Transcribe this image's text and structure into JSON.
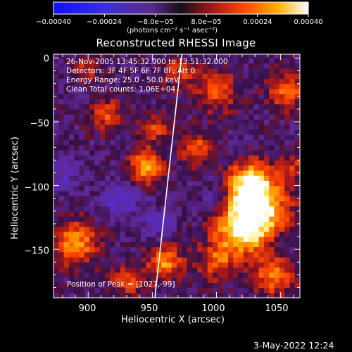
{
  "chart_data": {
    "type": "heatmap",
    "title": "Reconstructed RHESSI Image",
    "xlabel": "Heliocentric X (arcsec)",
    "ylabel": "Heliocentric Y (arcsec)",
    "x_ticks": [
      "900",
      "950",
      "1000",
      "1050"
    ],
    "y_ticks": [
      "0",
      "−50",
      "−100",
      "−150"
    ],
    "xlim": [
      873,
      1065
    ],
    "ylim": [
      -188,
      3
    ],
    "colorbar": {
      "ticks": [
        "−0.00040",
        "−0.00024",
        "−8.0e−05",
        "8.0e−05",
        "0.00024",
        "0.00040"
      ],
      "range": [
        -0.0004,
        0.0004
      ],
      "units": "(photons cm⁻² s⁻¹ asec⁻²)"
    },
    "info_lines": [
      "26-Nov-2005 13:45:32.000 to 13:51:32.000",
      "Detectors: 3F 4F 5F 6F 7F 8F, Att 0",
      "Energy Range: 25.0 - 50.0 keV",
      "Clean    Total counts: 1.06E+04"
    ],
    "peak_label": "Position of Peak = [1027,-99]",
    "peak": [
      1027,
      -99
    ],
    "limb_line": [
      [
        952,
        -188
      ],
      [
        973,
        3
      ]
    ]
  },
  "footer": {
    "timestamp": "3-May-2022 12:24"
  }
}
